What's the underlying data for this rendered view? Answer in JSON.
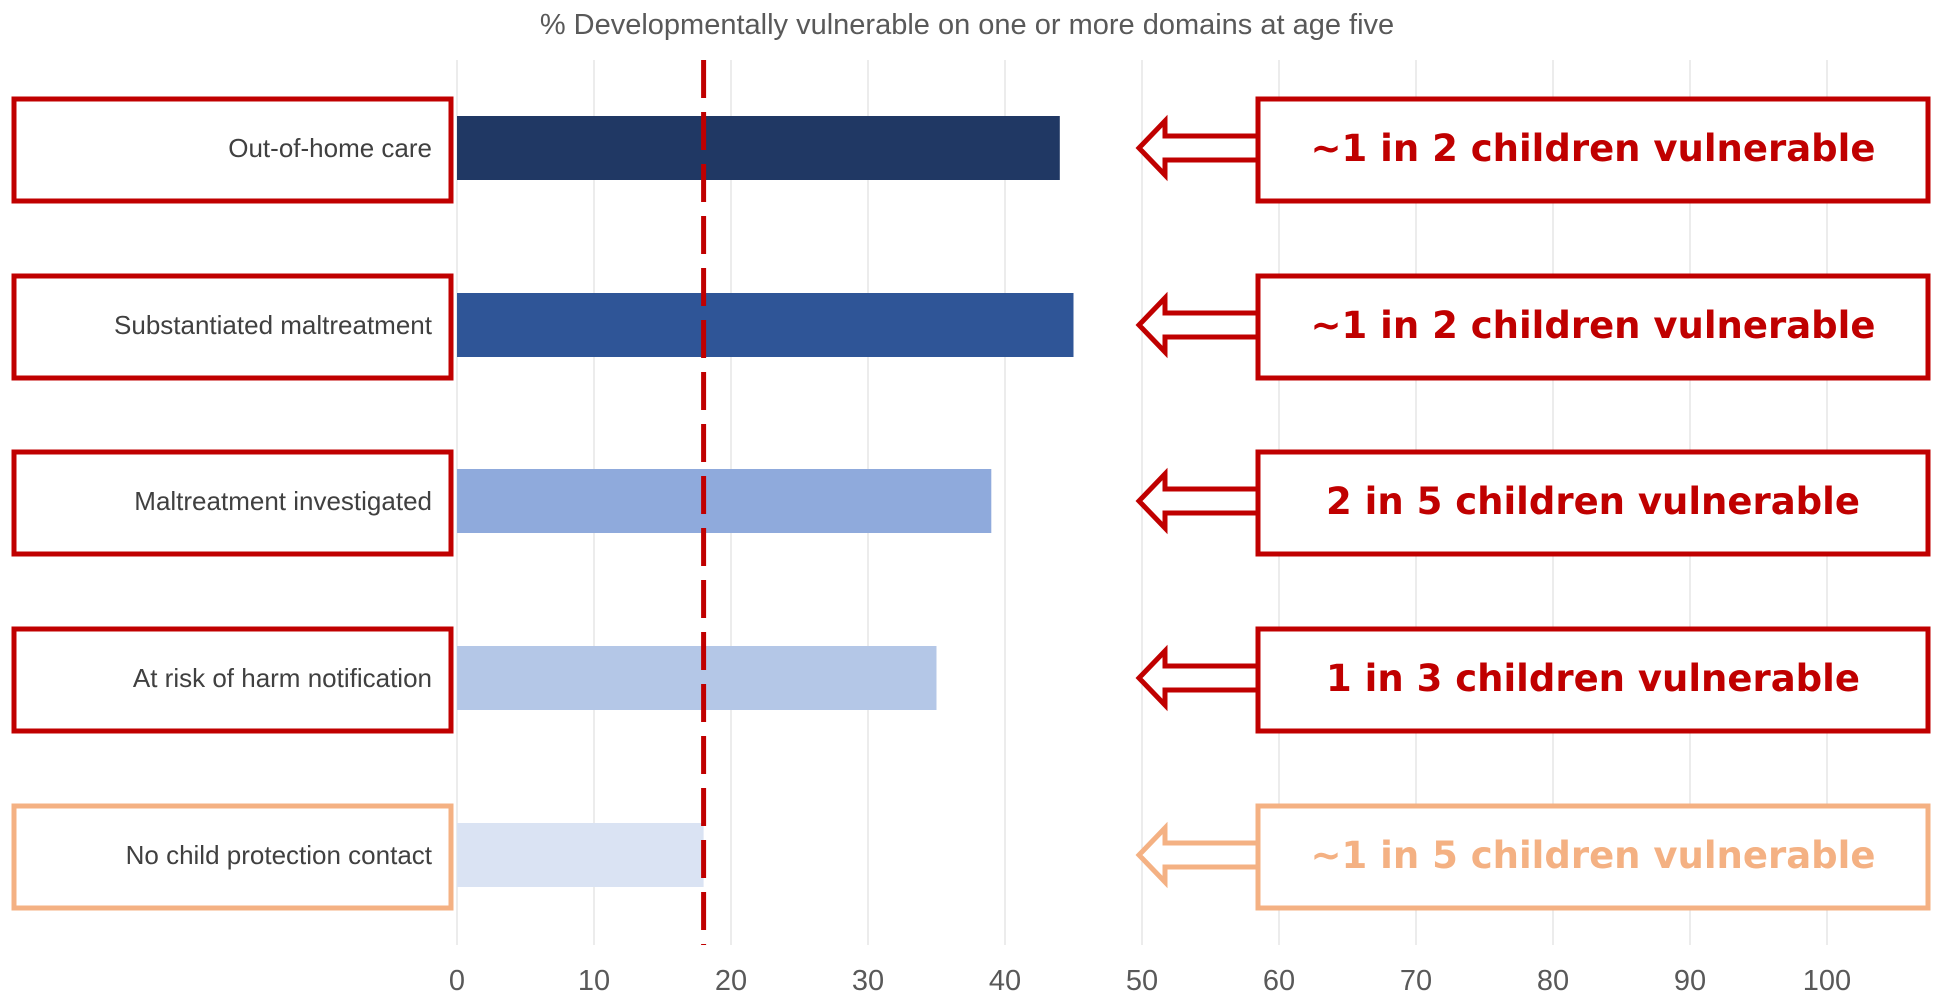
{
  "chart_data": {
    "type": "bar",
    "orientation": "horizontal",
    "title": "% Developmentally vulnerable on one or more domains at age five",
    "xlim": [
      0,
      100
    ],
    "ticks": [
      "0",
      "10",
      "20",
      "30",
      "40",
      "50",
      "60",
      "70",
      "80",
      "90",
      "100"
    ],
    "grid": true,
    "reference_line": {
      "value": 18,
      "style": "dashed",
      "color": "#C00000"
    },
    "categories": [
      "Out-of-home care",
      "Substantiated maltreatment",
      "Maltreatment investigated",
      "At risk of harm notification",
      "No child protection contact"
    ],
    "values": [
      44,
      45,
      39,
      35,
      18
    ],
    "bar_colors": [
      "#203864",
      "#2F5597",
      "#8FAADC",
      "#B4C7E7",
      "#DAE3F3"
    ],
    "callouts": [
      {
        "text": "~1 in 2 children vulnerable",
        "color": "#C00000"
      },
      {
        "text": "~1 in 2 children vulnerable",
        "color": "#C00000"
      },
      {
        "text": "2 in 5 children vulnerable",
        "color": "#C00000"
      },
      {
        "text": "1 in 3 children vulnerable",
        "color": "#C00000"
      },
      {
        "text": "~1 in 5 children vulnerable",
        "color": "#F4B183"
      }
    ],
    "category_box_colors": [
      "#C00000",
      "#C00000",
      "#C00000",
      "#C00000",
      "#F4B183"
    ]
  }
}
